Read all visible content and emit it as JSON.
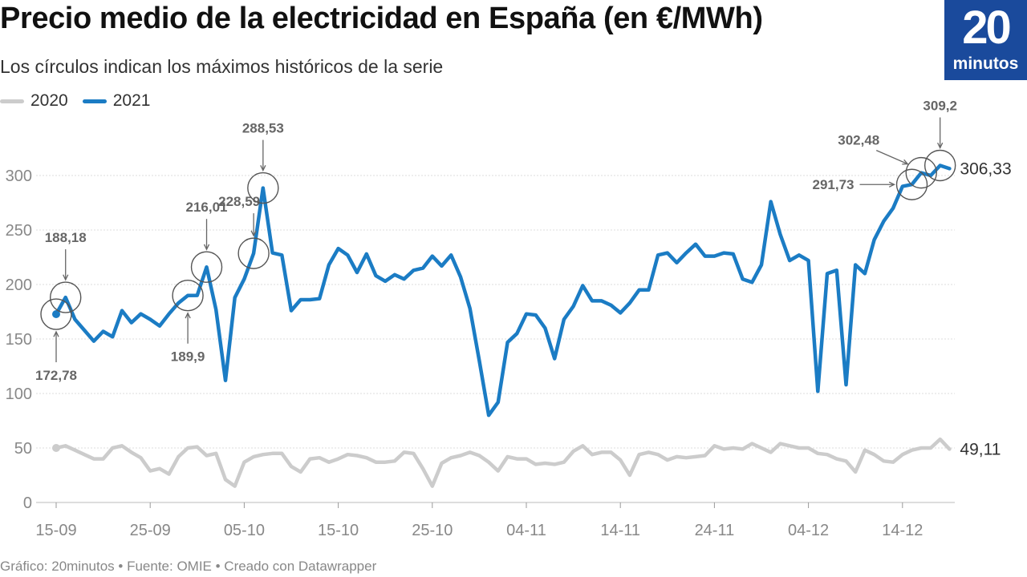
{
  "header": {
    "title": "Precio medio de la electricidad en España (en €/MWh)",
    "subtitle": "Los círculos indican los máximos históricos de la serie"
  },
  "logo": {
    "number": "20",
    "word": "minutos"
  },
  "footer": {
    "text": "Gráfico: 20minutos • Fuente: OMIE • Creado con Datawrapper"
  },
  "colors": {
    "s2020": "#cccccc",
    "s2021": "#1b7cc4",
    "grid": "#dddddd",
    "annotation": "#666666"
  },
  "chart_data": {
    "type": "line",
    "title": "Precio medio de la electricidad en España (en €/MWh)",
    "subtitle": "Los círculos indican los máximos históricos de la serie",
    "xlabel": "",
    "ylabel": "",
    "ylim": [
      0,
      300
    ],
    "yticks": [
      0,
      50,
      100,
      150,
      200,
      250,
      300
    ],
    "xlim": [
      0,
      95
    ],
    "xticks": [
      {
        "label": "15-09",
        "day": 0
      },
      {
        "label": "25-09",
        "day": 10
      },
      {
        "label": "05-10",
        "day": 20
      },
      {
        "label": "15-10",
        "day": 30
      },
      {
        "label": "25-10",
        "day": 40
      },
      {
        "label": "04-11",
        "day": 50
      },
      {
        "label": "14-11",
        "day": 60
      },
      {
        "label": "24-11",
        "day": 70
      },
      {
        "label": "04-12",
        "day": 80
      },
      {
        "label": "14-12",
        "day": 90
      }
    ],
    "x_note": "x = days since 15-09",
    "series": [
      {
        "name": "2020",
        "end_label": "49,11",
        "values": [
          50,
          52,
          48,
          44,
          40,
          40,
          50,
          52,
          46,
          41,
          29,
          31,
          26,
          42,
          50,
          51,
          43,
          45,
          21,
          15,
          37,
          42,
          44,
          45,
          45,
          33,
          28,
          40,
          41,
          37,
          40,
          44,
          43,
          41,
          37,
          37,
          38,
          46,
          45,
          31,
          15,
          36,
          41,
          43,
          46,
          43,
          37,
          29,
          42,
          40,
          40,
          35,
          36,
          35,
          37,
          47,
          52,
          44,
          46,
          46,
          39,
          25,
          44,
          46,
          44,
          39,
          42,
          41,
          42,
          43,
          52,
          49,
          50,
          49,
          54,
          50,
          46,
          54,
          52,
          50,
          50,
          45,
          44,
          40,
          38,
          28,
          48,
          44,
          38,
          37,
          44,
          48,
          50,
          50,
          58,
          49
        ]
      },
      {
        "name": "2021",
        "end_label": "306,33",
        "values": [
          172.78,
          188.18,
          168,
          158,
          148,
          157,
          152,
          176,
          165,
          173,
          168,
          162,
          173,
          183,
          189.9,
          190,
          216.01,
          177,
          112,
          188,
          205,
          228.59,
          288.53,
          229,
          227,
          176,
          186,
          186,
          187,
          218,
          233,
          227,
          211,
          228,
          208,
          203,
          209,
          205,
          213,
          215,
          226,
          217,
          227,
          207,
          178,
          130,
          80,
          92,
          147,
          155,
          173,
          172,
          160,
          132,
          168,
          180,
          199,
          185,
          185,
          181,
          174,
          183,
          195,
          195,
          227,
          229,
          220,
          229,
          237,
          226,
          226,
          229,
          228,
          205,
          202,
          218,
          276,
          246,
          222,
          227,
          222,
          102,
          210,
          213,
          108,
          218,
          210,
          241,
          258,
          270,
          290,
          291.73,
          302.48,
          300,
          309.2,
          306.33
        ]
      }
    ],
    "annotations": [
      {
        "label": "172,78",
        "day": 0,
        "value": 172.78,
        "arrow": "below"
      },
      {
        "label": "188,18",
        "day": 1,
        "value": 188.18,
        "arrow": "above"
      },
      {
        "label": "189,9",
        "day": 14,
        "value": 189.9,
        "arrow": "below"
      },
      {
        "label": "216,01",
        "day": 16,
        "value": 216.01,
        "arrow": "above"
      },
      {
        "label": "228,59",
        "day": 21,
        "value": 228.59,
        "arrow": "above"
      },
      {
        "label": "288,53",
        "day": 22,
        "value": 288.53,
        "arrow": "above"
      },
      {
        "label": "291,73",
        "day": 91,
        "value": 291.73,
        "arrow": "left"
      },
      {
        "label": "302,48",
        "day": 92,
        "value": 302.48,
        "arrow": "upper-left"
      },
      {
        "label": "309,2",
        "day": 94,
        "value": 309.2,
        "arrow": "above"
      }
    ]
  }
}
